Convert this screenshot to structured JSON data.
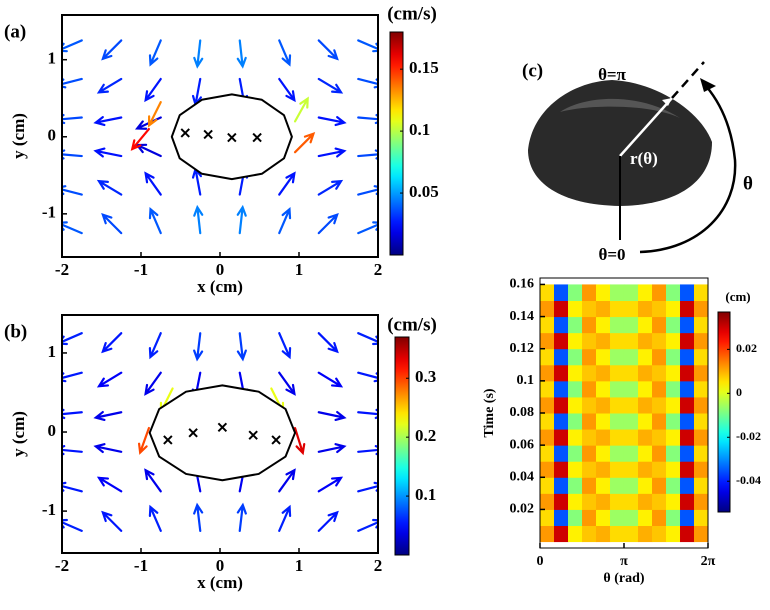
{
  "chart_data": [
    {
      "type": "quiver",
      "panel_label": "(a)",
      "xlabel": "x (cm)",
      "ylabel": "y (cm)",
      "xlim": [
        -2,
        2
      ],
      "ylim": [
        -1.56,
        1.58
      ],
      "xticks": [
        -2,
        -1,
        0,
        1,
        2
      ],
      "yticks": [
        -1,
        0,
        1
      ],
      "vectors": [
        [
          -1.75,
          1.25,
          -0.035,
          -0.015
        ],
        [
          -1.25,
          1.25,
          -0.025,
          -0.025
        ],
        [
          -0.75,
          1.25,
          -0.015,
          -0.035
        ],
        [
          -0.25,
          1.25,
          -0.005,
          -0.045
        ],
        [
          0.25,
          1.25,
          0.005,
          -0.045
        ],
        [
          0.75,
          1.25,
          0.015,
          -0.035
        ],
        [
          1.25,
          1.25,
          0.025,
          -0.025
        ],
        [
          1.75,
          1.25,
          0.035,
          -0.015
        ],
        [
          -1.75,
          0.75,
          -0.035,
          -0.009
        ],
        [
          -1.25,
          0.75,
          -0.025,
          -0.015
        ],
        [
          -0.75,
          0.75,
          -0.015,
          -0.021
        ],
        [
          -0.25,
          0.75,
          -0.005,
          -0.027
        ],
        [
          0.25,
          0.75,
          0.005,
          -0.027
        ],
        [
          0.75,
          0.75,
          0.015,
          -0.021
        ],
        [
          1.25,
          0.75,
          0.025,
          -0.015
        ],
        [
          1.75,
          0.75,
          0.035,
          -0.009
        ],
        [
          -1.75,
          0.25,
          -0.035,
          -0.003
        ],
        [
          -1.25,
          0.25,
          -0.025,
          -0.005
        ],
        [
          -0.75,
          0.25,
          -0.015,
          -0.007
        ],
        [
          1.25,
          0.25,
          0.025,
          -0.005
        ],
        [
          1.75,
          0.25,
          0.035,
          -0.003
        ],
        [
          -1.75,
          -0.25,
          -0.035,
          0.003
        ],
        [
          -1.25,
          -0.25,
          -0.025,
          0.005
        ],
        [
          -0.75,
          -0.25,
          -0.015,
          0.007
        ],
        [
          1.25,
          -0.25,
          0.025,
          0.005
        ],
        [
          1.75,
          -0.25,
          0.035,
          0.003
        ],
        [
          -1.75,
          -0.75,
          -0.035,
          0.009
        ],
        [
          -1.25,
          -0.75,
          -0.025,
          0.015
        ],
        [
          -0.75,
          -0.75,
          -0.015,
          0.021
        ],
        [
          -0.25,
          -0.75,
          -0.005,
          0.027
        ],
        [
          0.25,
          -0.75,
          0.005,
          0.027
        ],
        [
          0.75,
          -0.75,
          0.015,
          0.021
        ],
        [
          1.25,
          -0.75,
          0.025,
          0.015
        ],
        [
          1.75,
          -0.75,
          0.035,
          0.009
        ],
        [
          -1.75,
          -1.25,
          -0.035,
          0.015
        ],
        [
          -1.25,
          -1.25,
          -0.025,
          0.025
        ],
        [
          -0.75,
          -1.25,
          -0.015,
          0.035
        ],
        [
          -0.25,
          -1.25,
          -0.005,
          0.045
        ],
        [
          0.25,
          -1.25,
          0.005,
          0.045
        ],
        [
          0.75,
          -1.25,
          0.015,
          0.035
        ],
        [
          1.25,
          -1.25,
          0.025,
          0.025
        ],
        [
          1.75,
          -1.25,
          0.035,
          0.015
        ],
        [
          -0.75,
          0.45,
          -0.06,
          -0.12
        ],
        [
          -0.9,
          0.1,
          -0.1,
          -0.12
        ],
        [
          0.95,
          -0.2,
          0.1,
          0.1
        ],
        [
          0.95,
          0.2,
          0.05,
          0.09
        ]
      ],
      "outline": {
        "x": [
          0.91,
          0.81,
          0.53,
          0.15,
          -0.23,
          -0.51,
          -0.61,
          -0.51,
          -0.23,
          0.15,
          0.53,
          0.81
        ],
        "y": [
          0,
          0.28,
          0.48,
          0.55,
          0.48,
          0.28,
          0,
          -0.28,
          -0.48,
          -0.55,
          -0.48,
          -0.28
        ]
      },
      "crosses": {
        "x": [
          -0.44,
          -0.15,
          0.15,
          0.47
        ],
        "y": [
          0.05,
          0.03,
          -0.01,
          -0.01
        ]
      },
      "colorbar": {
        "label": "(cm/s)",
        "lim": [
          0,
          0.18
        ],
        "ticks": [
          0.05,
          0.1,
          0.15
        ]
      }
    },
    {
      "type": "quiver",
      "panel_label": "(b)",
      "xlabel": "x (cm)",
      "ylabel": "y (cm)",
      "xlim": [
        -2,
        2
      ],
      "ylim": [
        -1.53,
        1.48
      ],
      "xticks": [
        -2,
        -1,
        0,
        1,
        2
      ],
      "yticks": [
        -1,
        0,
        1
      ],
      "vectors": [
        [
          -1.75,
          1.25,
          -0.053,
          -0.023
        ],
        [
          -1.25,
          1.25,
          -0.038,
          -0.038
        ],
        [
          -0.75,
          1.25,
          -0.023,
          -0.053
        ],
        [
          -0.25,
          1.25,
          -0.008,
          -0.068
        ],
        [
          0.25,
          1.25,
          0.008,
          -0.068
        ],
        [
          0.75,
          1.25,
          0.023,
          -0.053
        ],
        [
          1.25,
          1.25,
          0.038,
          -0.038
        ],
        [
          1.75,
          1.25,
          0.053,
          -0.023
        ],
        [
          -1.75,
          0.75,
          -0.053,
          -0.014
        ],
        [
          -1.25,
          0.75,
          -0.038,
          -0.023
        ],
        [
          -0.75,
          0.75,
          -0.023,
          -0.032
        ],
        [
          -0.25,
          0.75,
          -0.008,
          -0.041
        ],
        [
          0.25,
          0.75,
          0.008,
          -0.041
        ],
        [
          0.75,
          0.75,
          0.023,
          -0.032
        ],
        [
          1.25,
          0.75,
          0.038,
          -0.023
        ],
        [
          1.75,
          0.75,
          0.053,
          -0.014
        ],
        [
          -1.75,
          0.25,
          -0.053,
          -0.005
        ],
        [
          -1.25,
          0.25,
          -0.038,
          -0.008
        ],
        [
          1.25,
          0.25,
          0.038,
          -0.008
        ],
        [
          1.75,
          0.25,
          0.053,
          -0.005
        ],
        [
          -1.75,
          -0.25,
          -0.053,
          0.005
        ],
        [
          -1.25,
          -0.25,
          -0.038,
          0.008
        ],
        [
          1.25,
          -0.25,
          0.038,
          0.008
        ],
        [
          1.75,
          -0.25,
          0.053,
          0.005
        ],
        [
          -1.75,
          -0.75,
          -0.053,
          0.014
        ],
        [
          -1.25,
          -0.75,
          -0.038,
          0.023
        ],
        [
          -0.75,
          -0.75,
          -0.023,
          0.032
        ],
        [
          -0.25,
          -0.75,
          -0.008,
          0.041
        ],
        [
          0.25,
          -0.75,
          0.008,
          0.041
        ],
        [
          0.75,
          -0.75,
          0.023,
          0.032
        ],
        [
          1.25,
          -0.75,
          0.038,
          0.023
        ],
        [
          1.75,
          -0.75,
          0.053,
          0.014
        ],
        [
          -1.75,
          -1.25,
          -0.053,
          0.023
        ],
        [
          -1.25,
          -1.25,
          -0.038,
          0.038
        ],
        [
          -0.75,
          -1.25,
          -0.023,
          0.053
        ],
        [
          -0.25,
          -1.25,
          -0.008,
          0.068
        ],
        [
          0.25,
          -1.25,
          0.008,
          0.068
        ],
        [
          0.75,
          -1.25,
          0.023,
          0.053
        ],
        [
          1.25,
          -1.25,
          0.038,
          0.038
        ],
        [
          1.75,
          -1.25,
          0.053,
          0.023
        ],
        [
          -0.9,
          0.05,
          -0.1,
          -0.28
        ],
        [
          0.95,
          0.05,
          0.1,
          -0.32
        ],
        [
          -0.6,
          0.55,
          -0.1,
          -0.2
        ],
        [
          0.65,
          0.55,
          0.1,
          -0.2
        ]
      ],
      "outline": {
        "x": [
          0.95,
          0.83,
          0.49,
          0.03,
          -0.43,
          -0.77,
          -0.89,
          -0.77,
          -0.43,
          0.03,
          0.49,
          0.83
        ],
        "y": [
          -0.01,
          0.29,
          0.51,
          0.59,
          0.51,
          0.29,
          -0.01,
          -0.31,
          -0.53,
          -0.61,
          -0.53,
          -0.31
        ]
      },
      "crosses": {
        "x": [
          -0.66,
          -0.34,
          0.03,
          0.42,
          0.71
        ],
        "y": [
          -0.1,
          -0.01,
          0.06,
          -0.04,
          -0.1
        ]
      },
      "colorbar": {
        "label": "(cm/s)",
        "lim": [
          0,
          0.37
        ],
        "ticks": [
          0.1,
          0.2,
          0.3
        ]
      }
    },
    {
      "type": "heatmap",
      "panel_label": "(c)",
      "xlabel": "θ (rad)",
      "ylabel": "Time (s)",
      "schematic_labels": {
        "top": "θ=π",
        "radius": "r(θ)",
        "angle": "θ",
        "bottom": "θ=0"
      },
      "xlim": [
        0,
        6.2832
      ],
      "ylim": [
        -0.004,
        0.164
      ],
      "xticks": [
        0,
        {
          "value": 3.1416,
          "label": "π"
        },
        {
          "value": 6.2832,
          "label": "2π"
        }
      ],
      "yticks": [
        0.02,
        0.04,
        0.06,
        0.08,
        0.1,
        0.12,
        0.14,
        0.16
      ],
      "x": [
        0.262,
        0.785,
        1.309,
        1.833,
        2.356,
        2.88,
        3.403,
        3.927,
        4.451,
        4.974,
        5.498,
        6.021
      ],
      "y": [
        0.005,
        0.015,
        0.025,
        0.035,
        0.045,
        0.055,
        0.065,
        0.075,
        0.085,
        0.095,
        0.105,
        0.115,
        0.125,
        0.135,
        0.145,
        0.155
      ],
      "z": [
        [
          0.012,
          0.03,
          0.004,
          0.008,
          0.01,
          0.006,
          0.006,
          0.01,
          0.008,
          0.004,
          0.03,
          0.012
        ],
        [
          0.006,
          -0.035,
          -0.008,
          0.012,
          0.004,
          -0.006,
          -0.006,
          0.004,
          0.012,
          -0.008,
          -0.035,
          0.006
        ],
        [
          0.012,
          0.03,
          0.004,
          0.008,
          0.01,
          0.006,
          0.006,
          0.01,
          0.008,
          0.004,
          0.03,
          0.012
        ],
        [
          0.006,
          -0.035,
          -0.008,
          0.012,
          0.004,
          -0.006,
          -0.006,
          0.004,
          0.012,
          -0.008,
          -0.035,
          0.006
        ],
        [
          0.012,
          0.03,
          0.004,
          0.008,
          0.01,
          0.006,
          0.006,
          0.01,
          0.008,
          0.004,
          0.03,
          0.012
        ],
        [
          0.006,
          -0.035,
          -0.008,
          0.012,
          0.004,
          -0.006,
          -0.006,
          0.004,
          0.012,
          -0.008,
          -0.035,
          0.006
        ],
        [
          0.012,
          0.03,
          0.004,
          0.008,
          0.01,
          0.006,
          0.006,
          0.01,
          0.008,
          0.004,
          0.03,
          0.012
        ],
        [
          0.006,
          -0.035,
          -0.008,
          0.012,
          0.004,
          -0.006,
          -0.006,
          0.004,
          0.012,
          -0.008,
          -0.035,
          0.006
        ],
        [
          0.012,
          0.03,
          0.004,
          0.008,
          0.01,
          0.006,
          0.006,
          0.01,
          0.008,
          0.004,
          0.03,
          0.012
        ],
        [
          0.006,
          -0.035,
          -0.008,
          0.012,
          0.004,
          -0.006,
          -0.006,
          0.004,
          0.012,
          -0.008,
          -0.035,
          0.006
        ],
        [
          0.012,
          0.03,
          0.004,
          0.008,
          0.01,
          0.006,
          0.006,
          0.01,
          0.008,
          0.004,
          0.03,
          0.012
        ],
        [
          0.006,
          -0.035,
          -0.008,
          0.012,
          0.004,
          -0.006,
          -0.006,
          0.004,
          0.012,
          -0.008,
          -0.035,
          0.006
        ],
        [
          0.012,
          0.03,
          0.004,
          0.008,
          0.01,
          0.006,
          0.006,
          0.01,
          0.008,
          0.004,
          0.03,
          0.012
        ],
        [
          0.006,
          -0.035,
          -0.008,
          0.012,
          0.004,
          -0.006,
          -0.006,
          0.004,
          0.012,
          -0.008,
          -0.035,
          0.006
        ],
        [
          0.012,
          0.03,
          0.004,
          0.008,
          0.01,
          0.006,
          0.006,
          0.01,
          0.008,
          0.004,
          0.03,
          0.012
        ],
        [
          0.006,
          -0.035,
          -0.008,
          0.012,
          0.004,
          -0.006,
          -0.006,
          0.004,
          0.012,
          -0.008,
          -0.035,
          0.006
        ]
      ],
      "colorbar": {
        "label": "(cm)",
        "lim": [
          -0.054,
          0.037
        ],
        "ticks": [
          -0.04,
          -0.02,
          0,
          0.02
        ]
      }
    }
  ]
}
